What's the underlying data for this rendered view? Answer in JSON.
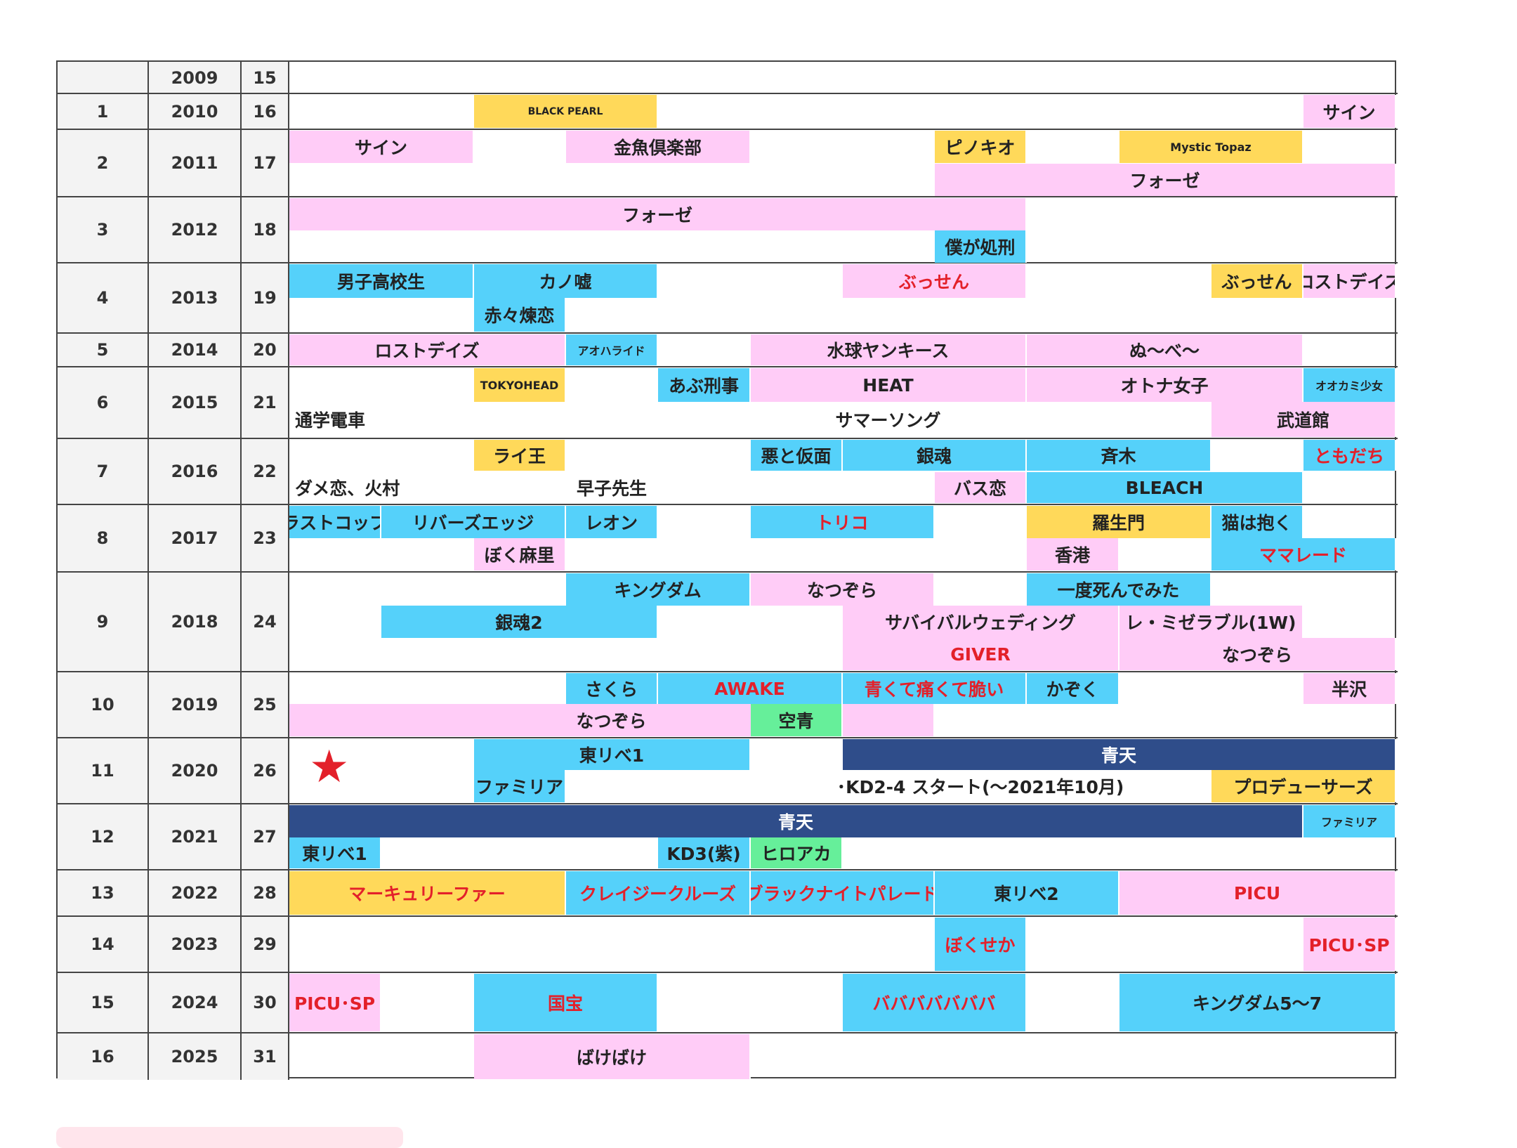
{
  "header_rows": [
    {
      "idx": "",
      "year": "2009",
      "age": "15"
    },
    {
      "idx": "1",
      "year": "2010",
      "age": "16"
    },
    {
      "idx": "2",
      "year": "2011",
      "age": "17"
    },
    {
      "idx": "3",
      "year": "2012",
      "age": "18"
    },
    {
      "idx": "4",
      "year": "2013",
      "age": "19"
    },
    {
      "idx": "5",
      "year": "2014",
      "age": "20"
    },
    {
      "idx": "6",
      "year": "2015",
      "age": "21"
    },
    {
      "idx": "7",
      "year": "2016",
      "age": "22"
    },
    {
      "idx": "8",
      "year": "2017",
      "age": "23"
    },
    {
      "idx": "9",
      "year": "2018",
      "age": "24"
    },
    {
      "idx": "10",
      "year": "2019",
      "age": "25"
    },
    {
      "idx": "11",
      "year": "2020",
      "age": "26"
    },
    {
      "idx": "12",
      "year": "2021",
      "age": "27"
    },
    {
      "idx": "13",
      "year": "2022",
      "age": "28"
    },
    {
      "idx": "14",
      "year": "2023",
      "age": "29"
    },
    {
      "idx": "15",
      "year": "2024",
      "age": "30"
    },
    {
      "idx": "16",
      "year": "2025",
      "age": "31"
    }
  ],
  "colors": {
    "pink": "#ffccf7",
    "blue": "#55d1fa",
    "yellow": "#ffd95a",
    "green": "#66ef9a",
    "navy": "#2f4d8a",
    "red_text": "#e3202a"
  },
  "star_icon": "★",
  "items": [
    {
      "label": "BLACK PEARL",
      "color": "yellow",
      "size": "tiny"
    },
    {
      "label": "サイン",
      "color": "pink"
    },
    {
      "label": "サイン",
      "color": "pink"
    },
    {
      "label": "金魚倶楽部",
      "color": "pink"
    },
    {
      "label": "ピノキオ",
      "color": "yellow"
    },
    {
      "label": "Mystic Topaz",
      "color": "yellow",
      "size": "small"
    },
    {
      "label": "フォーゼ",
      "color": "pink"
    },
    {
      "label": "フォーゼ",
      "color": "pink"
    },
    {
      "label": "僕が処刑",
      "color": "blue"
    },
    {
      "label": "男子高校生",
      "color": "blue"
    },
    {
      "label": "カノ嘘",
      "color": "blue"
    },
    {
      "label": "ぶっせん",
      "color": "pink",
      "red": true
    },
    {
      "label": "ぶっせん",
      "color": "yellow"
    },
    {
      "label": "ロストデイズ",
      "color": "pink"
    },
    {
      "label": "赤々煉恋",
      "color": "blue"
    },
    {
      "label": "ロストデイズ",
      "color": "pink"
    },
    {
      "label": "アオハライド",
      "color": "blue",
      "size": "small"
    },
    {
      "label": "水球ヤンキース",
      "color": "pink"
    },
    {
      "label": "ぬ〜べ〜",
      "color": "pink"
    },
    {
      "label": "TOKYOHEAD",
      "color": "yellow",
      "size": "small"
    },
    {
      "label": "あぶ刑事",
      "color": "blue"
    },
    {
      "label": "HEAT",
      "color": "pink"
    },
    {
      "label": "オトナ女子",
      "color": "pink"
    },
    {
      "label": "オオカミ少女",
      "color": "blue",
      "size": "small"
    },
    {
      "label": "通学電車",
      "color": "none",
      "plain": true
    },
    {
      "label": "サマーソング",
      "color": "none"
    },
    {
      "label": "武道館",
      "color": "pink"
    },
    {
      "label": "ライ王",
      "color": "yellow"
    },
    {
      "label": "悪と仮面",
      "color": "blue"
    },
    {
      "label": "銀魂",
      "color": "blue"
    },
    {
      "label": "斉木",
      "color": "blue"
    },
    {
      "label": "ともだち",
      "color": "blue",
      "red": true
    },
    {
      "label": "ダメ恋、火村",
      "color": "none",
      "plain": true
    },
    {
      "label": "早子先生",
      "color": "none"
    },
    {
      "label": "バス恋",
      "color": "pink"
    },
    {
      "label": "BLEACH",
      "color": "blue"
    },
    {
      "label": "ラストコップ",
      "color": "blue"
    },
    {
      "label": "リバーズエッジ",
      "color": "blue"
    },
    {
      "label": "レオン",
      "color": "blue"
    },
    {
      "label": "トリコ",
      "color": "blue",
      "red": true
    },
    {
      "label": "羅生門",
      "color": "yellow"
    },
    {
      "label": "猫は抱く",
      "color": "blue"
    },
    {
      "label": "ぼく麻里",
      "color": "pink"
    },
    {
      "label": "香港",
      "color": "pink"
    },
    {
      "label": "ママレード",
      "color": "blue",
      "red": true
    },
    {
      "label": "キングダム",
      "color": "blue"
    },
    {
      "label": "なつぞら",
      "color": "pink"
    },
    {
      "label": "一度死んでみた",
      "color": "blue"
    },
    {
      "label": "銀魂2",
      "color": "blue"
    },
    {
      "label": "サバイバルウェディング",
      "color": "pink"
    },
    {
      "label": "レ・ミゼラブル(1W)",
      "color": "pink"
    },
    {
      "label": "GIVER",
      "color": "pink",
      "red": true
    },
    {
      "label": "なつぞら",
      "color": "pink"
    },
    {
      "label": "さくら",
      "color": "blue"
    },
    {
      "label": "AWAKE",
      "color": "blue",
      "red": true
    },
    {
      "label": "青くて痛くて脆い",
      "color": "blue",
      "red": true
    },
    {
      "label": "かぞく",
      "color": "blue"
    },
    {
      "label": "半沢",
      "color": "pink"
    },
    {
      "label": "なつぞら",
      "color": "pink"
    },
    {
      "label": "空青",
      "color": "green"
    },
    {
      "label": "東リべ1",
      "color": "blue"
    },
    {
      "label": "青天",
      "color": "navy"
    },
    {
      "label": "ファミリア",
      "color": "blue"
    },
    {
      "label": "･KD2-4 スタート(〜2021年10月)",
      "color": "none"
    },
    {
      "label": "プロデューサーズ",
      "color": "yellow"
    },
    {
      "label": "青天",
      "color": "navy"
    },
    {
      "label": "ファミリア",
      "color": "blue",
      "size": "small"
    },
    {
      "label": "東リべ1",
      "color": "blue"
    },
    {
      "label": "KD3(紫)",
      "color": "blue"
    },
    {
      "label": "ヒロアカ",
      "color": "green"
    },
    {
      "label": "マーキュリーファー",
      "color": "yellow",
      "red": true
    },
    {
      "label": "クレイジークルーズ",
      "color": "blue",
      "red": true
    },
    {
      "label": "ブラックナイトパレード",
      "color": "blue",
      "red": true
    },
    {
      "label": "東リべ2",
      "color": "blue"
    },
    {
      "label": "PICU",
      "color": "pink",
      "red": true
    },
    {
      "label": "ぼくせか",
      "color": "blue",
      "red": true
    },
    {
      "label": "PICU･SP",
      "color": "pink",
      "red": true
    },
    {
      "label": "PICU･SP",
      "color": "pink",
      "red": true
    },
    {
      "label": "国宝",
      "color": "blue",
      "red": true
    },
    {
      "label": "バババババババ",
      "color": "blue",
      "red": true
    },
    {
      "label": "キングダム5〜7",
      "color": "blue"
    },
    {
      "label": "ばけばけ",
      "color": "pink"
    }
  ]
}
